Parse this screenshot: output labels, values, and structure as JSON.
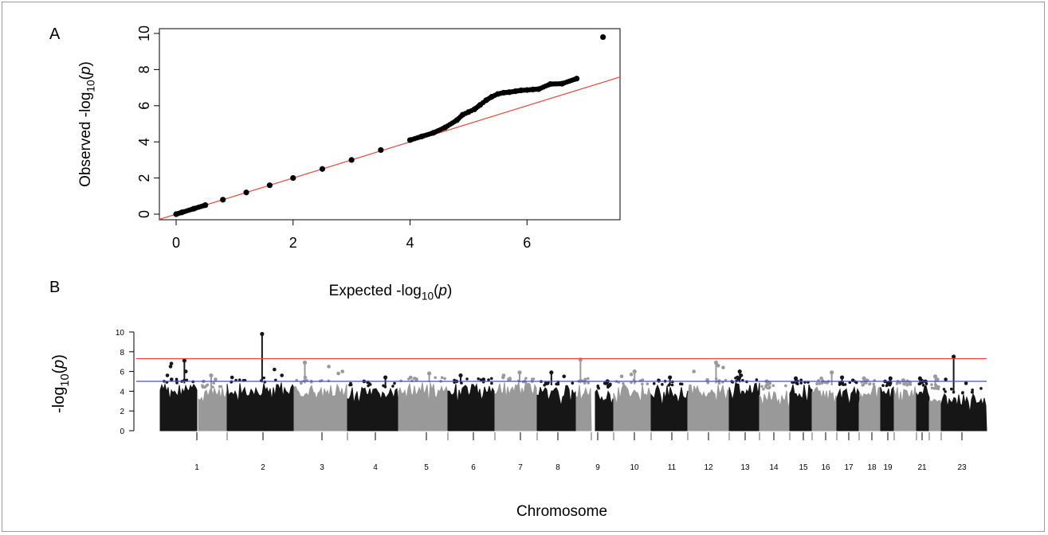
{
  "panels": {
    "a": "A",
    "b": "B"
  },
  "chart_data": [
    {
      "type": "scatter",
      "panel": "A",
      "xlabel": "Expected  -log10(p)",
      "ylabel": "Observed  -log10(p)",
      "xlim": [
        0,
        7.3
      ],
      "ylim": [
        0,
        10
      ],
      "x_ticks": [
        0,
        2,
        4,
        6
      ],
      "y_ticks": [
        0,
        2,
        4,
        6,
        8,
        10
      ],
      "reference_line": {
        "slope": 1,
        "intercept": 0,
        "color": "#e8453c"
      },
      "points_color": "#000000",
      "points": [
        [
          0.0,
          0.0
        ],
        [
          0.1,
          0.1
        ],
        [
          0.3,
          0.3
        ],
        [
          0.5,
          0.5
        ],
        [
          0.8,
          0.8
        ],
        [
          1.2,
          1.2
        ],
        [
          1.6,
          1.6
        ],
        [
          2.0,
          2.0
        ],
        [
          2.5,
          2.5
        ],
        [
          3.0,
          3.0
        ],
        [
          3.5,
          3.55
        ],
        [
          4.0,
          4.1
        ],
        [
          4.2,
          4.3
        ],
        [
          4.4,
          4.5
        ],
        [
          4.6,
          4.8
        ],
        [
          4.8,
          5.2
        ],
        [
          4.9,
          5.5
        ],
        [
          5.0,
          5.65
        ],
        [
          5.1,
          5.8
        ],
        [
          5.2,
          6.05
        ],
        [
          5.3,
          6.3
        ],
        [
          5.4,
          6.5
        ],
        [
          5.5,
          6.65
        ],
        [
          5.6,
          6.72
        ],
        [
          5.7,
          6.75
        ],
        [
          5.8,
          6.8
        ],
        [
          5.9,
          6.85
        ],
        [
          6.0,
          6.87
        ],
        [
          6.1,
          6.9
        ],
        [
          6.2,
          6.92
        ],
        [
          6.4,
          7.2
        ],
        [
          6.6,
          7.22
        ],
        [
          6.85,
          7.5
        ],
        [
          7.3,
          9.8
        ]
      ]
    },
    {
      "type": "scatter",
      "panel": "B",
      "xlabel": "Chromosome",
      "ylabel": "-log10(p)",
      "ylim": [
        0,
        10
      ],
      "y_ticks": [
        0,
        2,
        4,
        6,
        8,
        10
      ],
      "categories": [
        "1",
        "2",
        "3",
        "4",
        "5",
        "6",
        "7",
        "8",
        "9",
        "10",
        "11",
        "12",
        "13",
        "14",
        "15",
        "16",
        "17",
        "18",
        "19",
        "21",
        "23"
      ],
      "threshold_lines": [
        {
          "value": 7.3,
          "color": "#e8453c"
        },
        {
          "value": 5.0,
          "color": "#3b4fd4"
        }
      ],
      "colors": {
        "dark": "#161616",
        "light": "#999999"
      },
      "chromosomes": [
        {
          "label": "1",
          "base_top": 4.8,
          "peak": 7.1,
          "tail": [
            6.8,
            6.5,
            6.0,
            5.6,
            5.2
          ]
        },
        {
          "label": "",
          "base_top": 4.4,
          "peak": 5.6,
          "tail": [
            5.2,
            5.0
          ]
        },
        {
          "label": "2",
          "base_top": 4.9,
          "peak": 9.8,
          "tail": [
            6.2,
            5.6,
            5.4
          ]
        },
        {
          "label": "3",
          "base_top": 4.8,
          "peak": 6.9,
          "tail": [
            6.5,
            6.0,
            5.8,
            5.4
          ]
        },
        {
          "label": "4",
          "base_top": 4.4,
          "peak": 5.4,
          "tail": [
            5.0,
            4.9
          ]
        },
        {
          "label": "5",
          "base_top": 4.9,
          "peak": 5.8,
          "tail": [
            5.4,
            5.2
          ]
        },
        {
          "label": "6",
          "base_top": 4.8,
          "peak": 5.6,
          "tail": [
            5.2,
            5.0
          ]
        },
        {
          "label": "7",
          "base_top": 4.9,
          "peak": 5.9,
          "tail": [
            5.6,
            5.4,
            5.2
          ]
        },
        {
          "label": "8",
          "base_top": 4.6,
          "peak": 5.9,
          "tail": [
            5.5
          ]
        },
        {
          "label": "9",
          "base_top": 4.8,
          "peak": 7.2,
          "tail": [
            5.0
          ]
        },
        {
          "label": "",
          "base_top": 4.3,
          "peak": 5.0,
          "tail": [
            4.8
          ]
        },
        {
          "label": "10",
          "base_top": 4.7,
          "peak": 6.0,
          "tail": [
            5.7,
            5.5
          ]
        },
        {
          "label": "11",
          "base_top": 4.6,
          "peak": 5.4,
          "tail": [
            5.1
          ]
        },
        {
          "label": "12",
          "base_top": 4.8,
          "peak": 6.9,
          "tail": [
            6.6,
            6.4,
            6.0
          ]
        },
        {
          "label": "13",
          "base_top": 4.9,
          "peak": 6.0,
          "tail": [
            5.6,
            5.4
          ]
        },
        {
          "label": "14",
          "base_top": 4.2,
          "peak": 5.0,
          "tail": [
            4.8
          ]
        },
        {
          "label": "15",
          "base_top": 4.7,
          "peak": 5.3,
          "tail": [
            5.0
          ]
        },
        {
          "label": "16",
          "base_top": 4.6,
          "peak": 5.9,
          "tail": [
            5.3
          ]
        },
        {
          "label": "17",
          "base_top": 4.6,
          "peak": 5.4,
          "tail": [
            5.1
          ]
        },
        {
          "label": "18",
          "base_top": 4.6,
          "peak": 5.3,
          "tail": [
            5.1
          ]
        },
        {
          "label": "19",
          "base_top": 4.5,
          "peak": 5.3,
          "tail": [
            5.0
          ]
        },
        {
          "label": "",
          "base_top": 4.6,
          "peak": 5.1,
          "tail": [
            4.9
          ]
        },
        {
          "label": "21",
          "base_top": 4.6,
          "peak": 5.3,
          "tail": [
            5.0
          ]
        },
        {
          "label": "",
          "base_top": 4.2,
          "peak": 5.5,
          "tail": [
            5.2
          ]
        },
        {
          "label": "23",
          "base_top": 3.8,
          "peak": 7.5,
          "tail": [
            5.2,
            4.8
          ]
        }
      ]
    }
  ]
}
